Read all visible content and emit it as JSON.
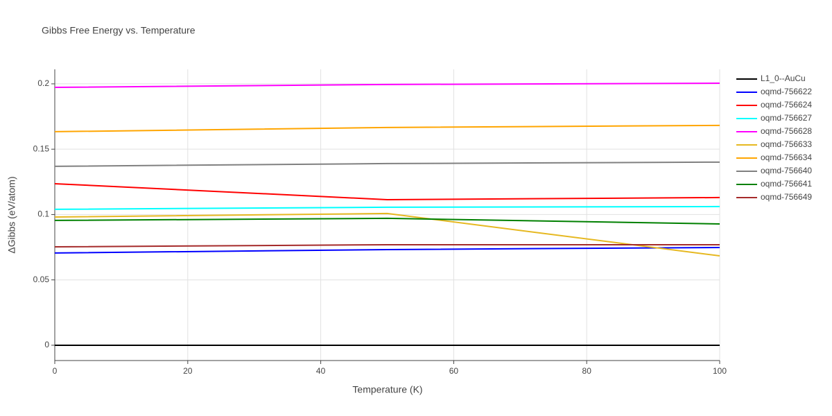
{
  "chart_data": {
    "type": "line",
    "title": "Gibbs Free Energy vs. Temperature",
    "x_label": "Temperature (K)",
    "y_label": "ΔGibbs (eV/atom)",
    "x": [
      0,
      50,
      100
    ],
    "xlim": [
      0,
      100
    ],
    "xticks": [
      0,
      20,
      40,
      60,
      80,
      100
    ],
    "ylim": [
      -0.0117,
      0.2111
    ],
    "yticks": [
      0,
      0.05,
      0.1,
      0.15,
      0.2
    ],
    "grid": true,
    "legend": "right",
    "series": [
      {
        "name": "L1_0--AuCu",
        "color": "#000000",
        "values": [
          0,
          0,
          0
        ]
      },
      {
        "name": "oqmd-756622",
        "color": "#0000ff",
        "values": [
          0.0706,
          0.0732,
          0.0748
        ]
      },
      {
        "name": "oqmd-756624",
        "color": "#ff0000",
        "values": [
          0.1236,
          0.1114,
          0.113
        ]
      },
      {
        "name": "oqmd-756627",
        "color": "#00ffff",
        "values": [
          0.104,
          0.1056,
          0.1061
        ]
      },
      {
        "name": "oqmd-756628",
        "color": "#ff00ff",
        "values": [
          0.1973,
          0.1995,
          0.2005
        ]
      },
      {
        "name": "oqmd-756633",
        "color": "#e6b820",
        "values": [
          0.0981,
          0.1008,
          0.0684
        ]
      },
      {
        "name": "oqmd-756634",
        "color": "#ffa500",
        "values": [
          0.1634,
          0.1666,
          0.1682
        ]
      },
      {
        "name": "oqmd-756640",
        "color": "#808080",
        "values": [
          0.1369,
          0.139,
          0.1401
        ]
      },
      {
        "name": "oqmd-756641",
        "color": "#008000",
        "values": [
          0.0955,
          0.0971,
          0.0928
        ]
      },
      {
        "name": "oqmd-756649",
        "color": "#a52a2a",
        "values": [
          0.0753,
          0.0769,
          0.0769
        ]
      }
    ]
  }
}
